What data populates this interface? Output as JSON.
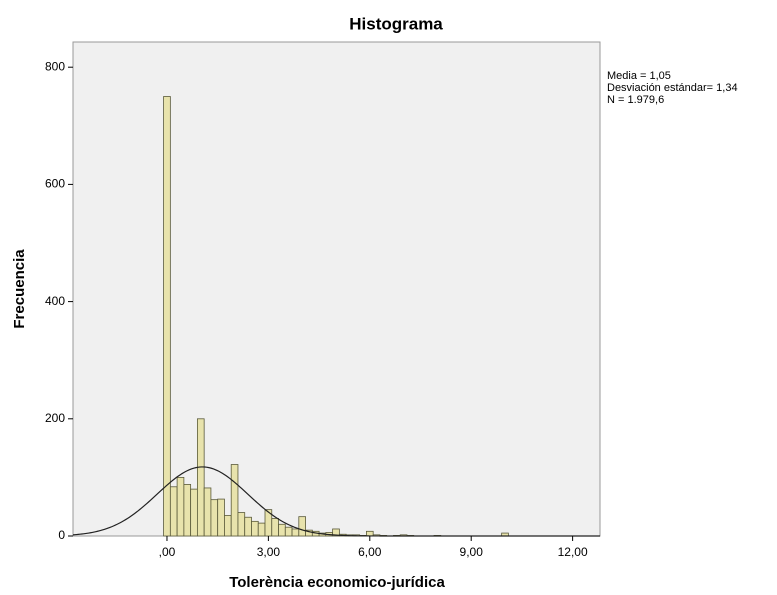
{
  "chart_data": {
    "type": "histogram",
    "title": "Histograma",
    "x_label": "Tolerència economico-jurídica",
    "y_label": "Frecuencia",
    "annotations": [
      "Media = 1,05",
      "Desviación estándar= 1,34",
      "N = 1.979,6"
    ],
    "bins": [
      -0.1,
      0.1,
      0.3,
      0.5,
      0.7,
      0.9,
      1.1,
      1.3,
      1.5,
      1.7,
      1.9,
      2.1,
      2.3,
      2.5,
      2.7,
      2.9,
      3.1,
      3.3,
      3.5,
      3.7,
      3.9,
      4.1,
      4.3,
      4.5,
      4.7,
      4.9,
      5.1,
      5.3,
      5.5,
      5.7,
      5.9,
      6.1,
      6.3,
      6.5,
      6.7,
      6.9,
      7.1,
      7.3,
      7.5,
      7.7,
      7.9,
      8.1,
      8.3,
      8.5,
      8.7,
      8.9,
      9.1,
      9.3,
      9.5,
      9.7,
      9.9,
      10.1
    ],
    "values": [
      750,
      84,
      100,
      88,
      80,
      200,
      82,
      62,
      63,
      35,
      122,
      40,
      32,
      25,
      22,
      45,
      30,
      20,
      15,
      12,
      33,
      10,
      8,
      5,
      6,
      12,
      3,
      2,
      2,
      1,
      8,
      2,
      1,
      0,
      1,
      2,
      1,
      0,
      0,
      0,
      1,
      0,
      0,
      0,
      0,
      0,
      0,
      0,
      0,
      0,
      5
    ],
    "color": "#e8e3ac",
    "curve": {
      "mean": 1.05,
      "sd": 1.34,
      "n": 1979.6
    },
    "xlim": [
      -2.78,
      12.81
    ],
    "ylim": [
      0,
      843
    ],
    "xticks": [
      {
        "value": 0,
        "label": ",00"
      },
      {
        "value": 3,
        "label": "3,00"
      },
      {
        "value": 6,
        "label": "6,00"
      },
      {
        "value": 9,
        "label": "9,00"
      },
      {
        "value": 12,
        "label": "12,00"
      }
    ],
    "yticks": [
      0,
      200,
      400,
      600,
      800
    ]
  }
}
